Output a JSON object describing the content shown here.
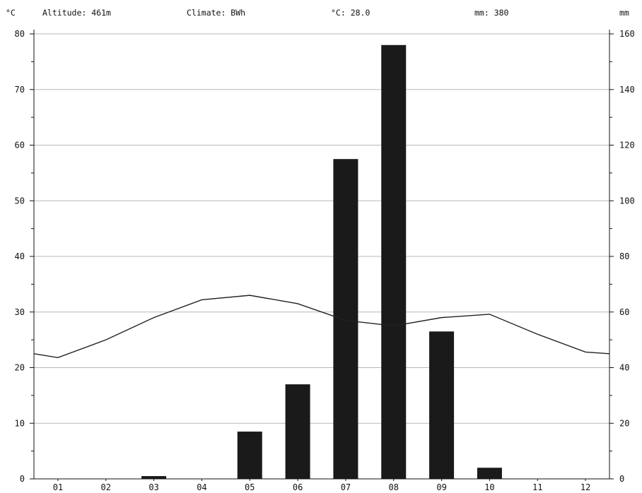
{
  "header": {
    "left_unit": "°C",
    "altitude": "Altitude: 461m",
    "climate": "Climate: BWh",
    "mean_temp": "°C: 28.0",
    "total_precip": "mm: 380",
    "right_unit": "mm"
  },
  "chart_data": {
    "type": "bar",
    "categories": [
      "01",
      "02",
      "03",
      "04",
      "05",
      "06",
      "07",
      "08",
      "09",
      "10",
      "11",
      "12"
    ],
    "series": [
      {
        "name": "",
        "kind": "bar",
        "axis": "right",
        "values": [
          0,
          0,
          1,
          0,
          17,
          34,
          115,
          156,
          53,
          4,
          0,
          0
        ]
      },
      {
        "name": "",
        "kind": "line",
        "axis": "left",
        "values": [
          21.8,
          25.0,
          29.0,
          32.2,
          33.0,
          31.5,
          28.5,
          27.5,
          29.0,
          29.6,
          26.0,
          22.8
        ],
        "edge_start": 22.5,
        "edge_end": 22.5
      }
    ],
    "y_left": {
      "label": "°C",
      "ylim": [
        0,
        80
      ],
      "ticks": [
        0,
        10,
        20,
        30,
        40,
        50,
        60,
        70,
        80
      ]
    },
    "y_right": {
      "label": "mm",
      "ylim": [
        0,
        160
      ],
      "ticks": [
        0,
        20,
        40,
        60,
        80,
        100,
        120,
        140,
        160
      ]
    },
    "grid": true
  }
}
